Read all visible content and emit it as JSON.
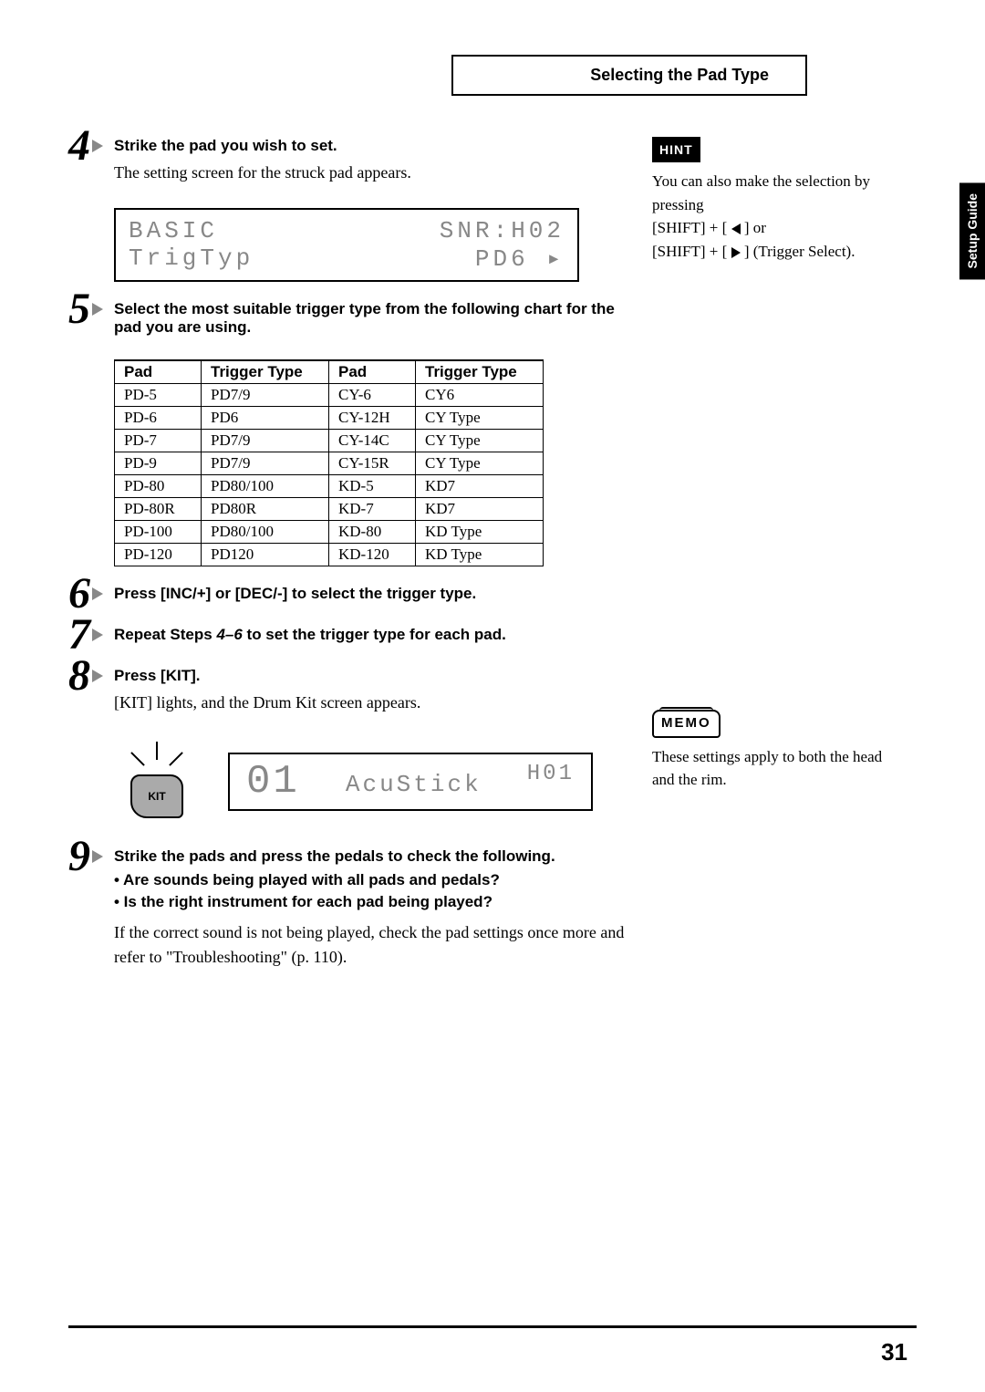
{
  "header": {
    "title": "Selecting the Pad Type"
  },
  "side_tab": "Setup Guide",
  "page_number": "31",
  "steps": {
    "s4": {
      "num": "4",
      "title": "Strike the pad you wish to set.",
      "body": "The setting screen for the struck pad appears.",
      "lcd_top_left": "BASIC",
      "lcd_top_right": "SNR:H02",
      "lcd_bot_left": "TrigTyp",
      "lcd_bot_right": "PD6 ▸"
    },
    "s5": {
      "num": "5",
      "title": "Select the most suitable trigger type from the following chart for the pad you are using.",
      "table": {
        "headers": [
          "Pad",
          "Trigger Type",
          "Pad",
          "Trigger Type"
        ],
        "rows": [
          [
            "PD-5",
            "PD7/9",
            "CY-6",
            "CY6"
          ],
          [
            "PD-6",
            "PD6",
            "CY-12H",
            "CY Type"
          ],
          [
            "PD-7",
            "PD7/9",
            "CY-14C",
            "CY Type"
          ],
          [
            "PD-9",
            "PD7/9",
            "CY-15R",
            "CY Type"
          ],
          [
            "PD-80",
            "PD80/100",
            "KD-5",
            "KD7"
          ],
          [
            "PD-80R",
            "PD80R",
            "KD-7",
            "KD7"
          ],
          [
            "PD-100",
            "PD80/100",
            "KD-80",
            "KD Type"
          ],
          [
            "PD-120",
            "PD120",
            "KD-120",
            "KD Type"
          ]
        ]
      }
    },
    "s6": {
      "num": "6",
      "title": "Press [INC/+] or [DEC/-] to select the trigger type."
    },
    "s7": {
      "num": "7",
      "title_a": "Repeat Steps ",
      "title_em": "4–6",
      "title_b": " to set the trigger type for each pad."
    },
    "s8": {
      "num": "8",
      "title": "Press [KIT].",
      "body": "[KIT] lights, and the Drum Kit screen appears.",
      "kit_label": "KIT",
      "lcd_big": "01",
      "lcd_name": "AcuStick",
      "lcd_code": "H01"
    },
    "s9": {
      "num": "9",
      "title": "Strike the pads and press the pedals to check the following.",
      "b1": "• Are sounds being played with all pads and pedals?",
      "b2": "• Is the right instrument for each pad being played?",
      "body": "If the correct sound is not being played, check the pad settings once more and refer to \"Troubleshooting\" (p. 110)."
    }
  },
  "hint": {
    "label": "HINT",
    "line1": "You can also make the selection by pressing",
    "line2a": "[SHIFT] + [ ",
    "line2b": " ] or",
    "line3a": "[SHIFT] + [ ",
    "line3b": " ] (Trigger Select)."
  },
  "memo": {
    "label": "MEMO",
    "text": "These settings apply to both the head and the rim."
  }
}
